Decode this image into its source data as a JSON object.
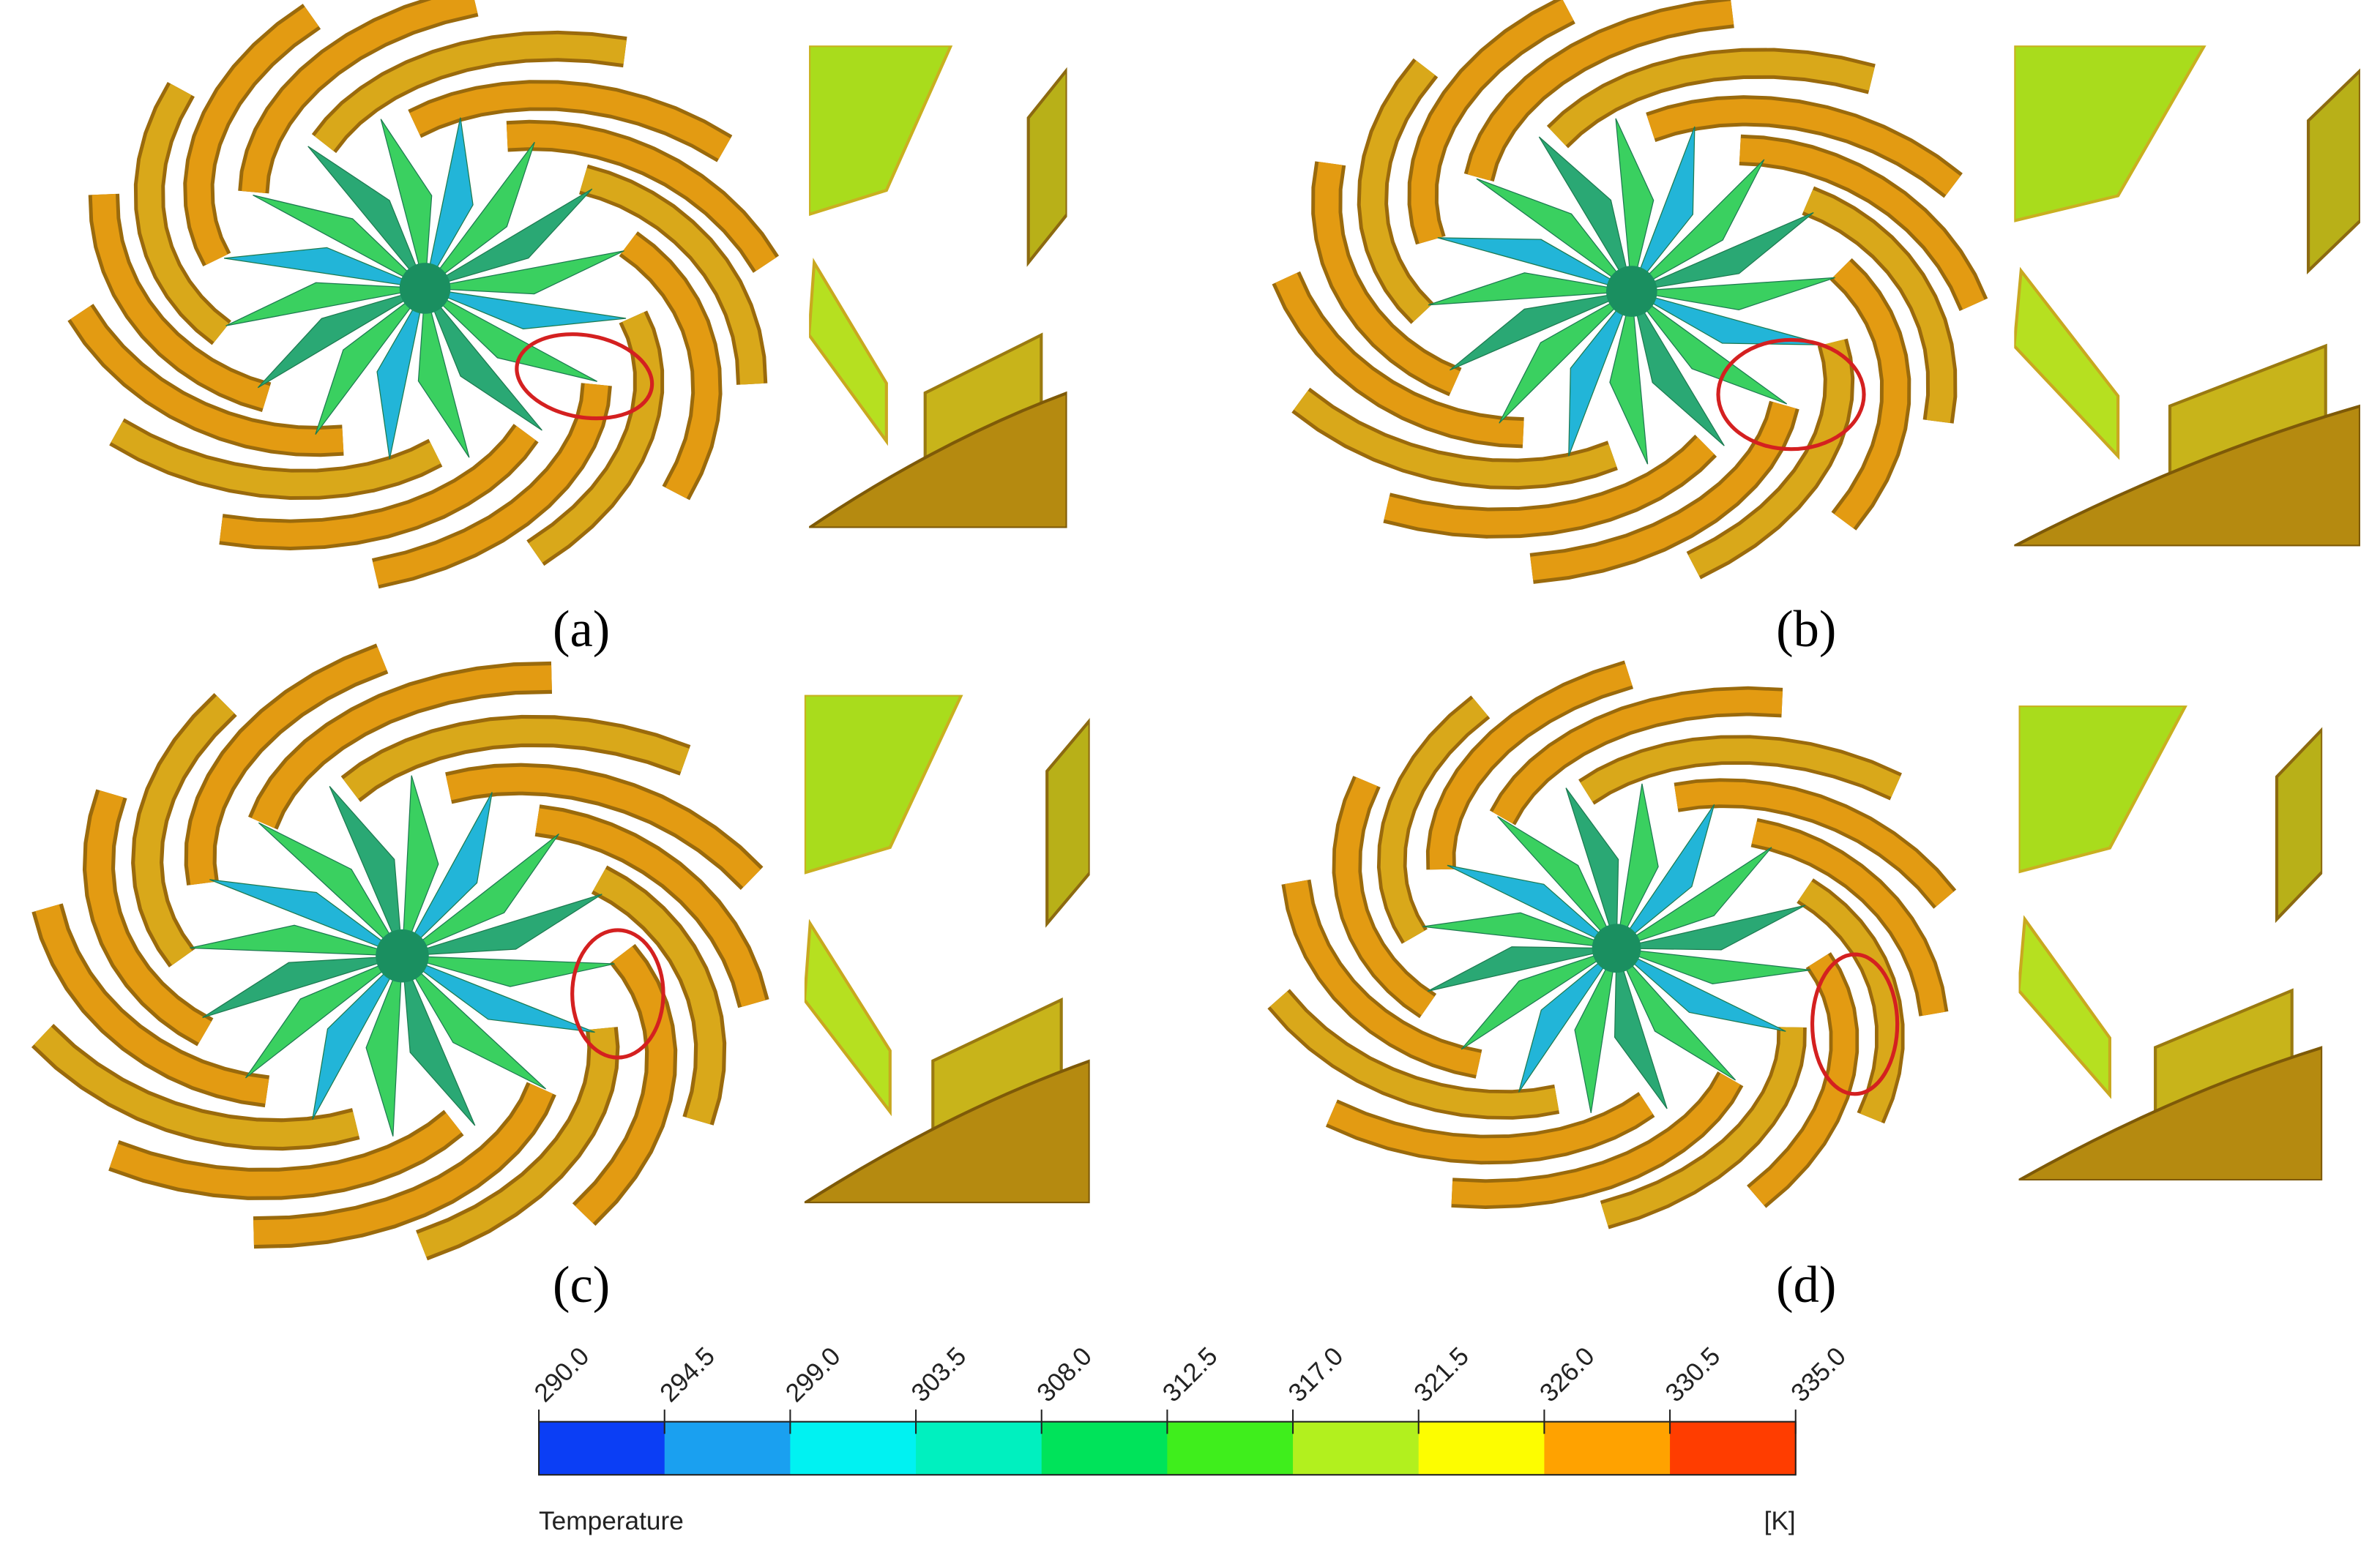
{
  "panels": [
    {
      "label": "(a)"
    },
    {
      "label": "(b)"
    },
    {
      "label": "(c)"
    },
    {
      "label": "(d)"
    }
  ],
  "colorbar": {
    "title": "Temperature",
    "unit": "[K]",
    "ticks": [
      "290.0",
      "294.5",
      "299.0",
      "303.5",
      "308.0",
      "312.5",
      "317.0",
      "321.5",
      "326.0",
      "330.5",
      "335.0"
    ],
    "colors": [
      "#0b3ef5",
      "#1aa0f0",
      "#00f2f2",
      "#00f0bf",
      "#00e35a",
      "#3fee1c",
      "#b2f01e",
      "#fdfd00",
      "#ffa200",
      "#ff3d00"
    ]
  }
}
